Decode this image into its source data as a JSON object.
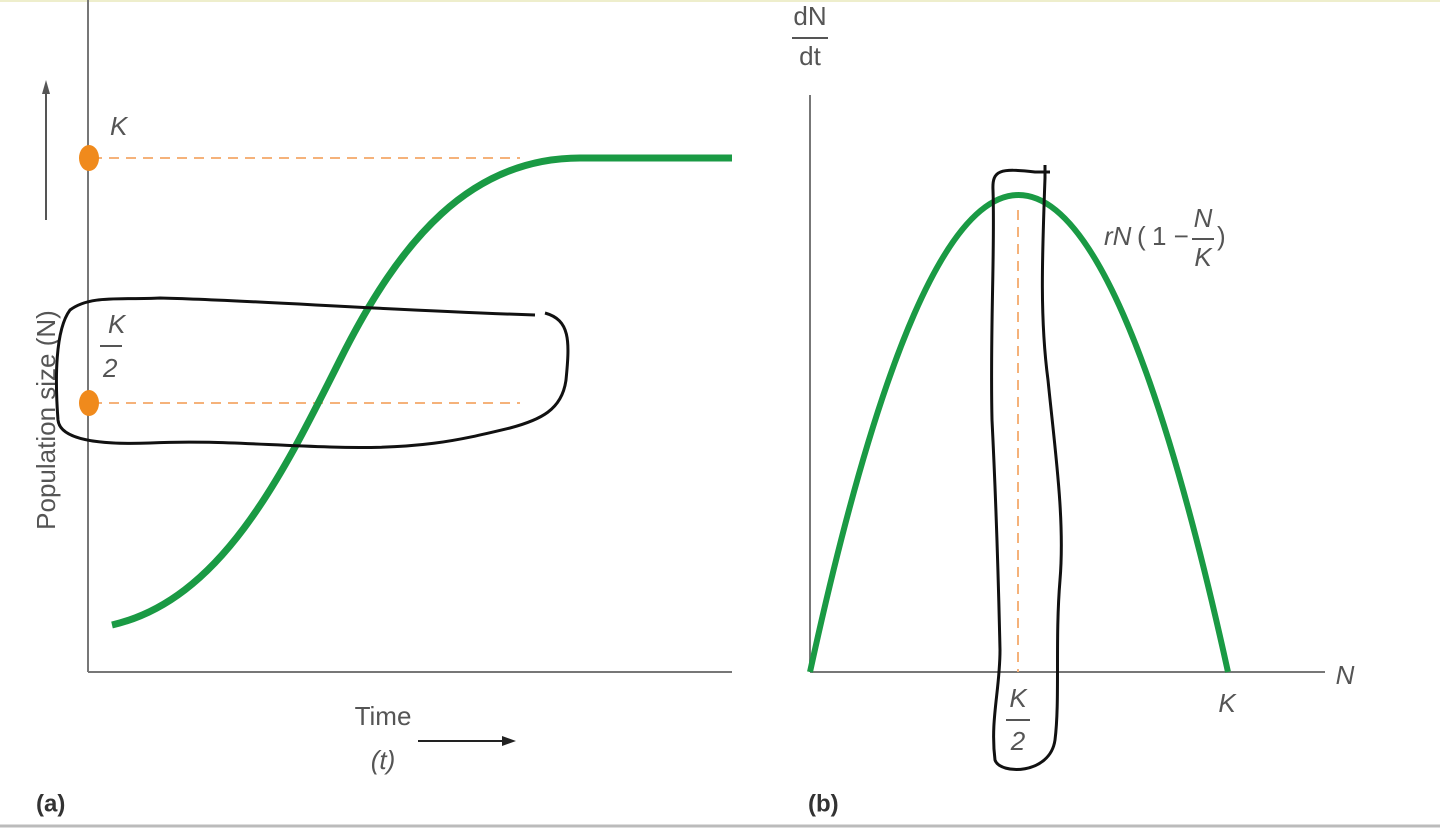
{
  "panel_a": {
    "label": "(a)",
    "y_axis_label": "Population size (N)",
    "x_axis_label": "Time",
    "x_axis_symbol": "(t)",
    "k_label": "K",
    "half_k_numerator": "K",
    "half_k_denominator": "2"
  },
  "panel_b": {
    "label": "(b)",
    "y_axis_numerator": "dN",
    "y_axis_denominator": "dt",
    "x_axis_label": "N",
    "k_label": "K",
    "half_k_numerator": "K",
    "half_k_denominator": "2",
    "curve_label_prefix": "rN",
    "curve_label_middle": "1 −",
    "curve_label_numerator": "N",
    "curve_label_denominator": "K"
  }
}
